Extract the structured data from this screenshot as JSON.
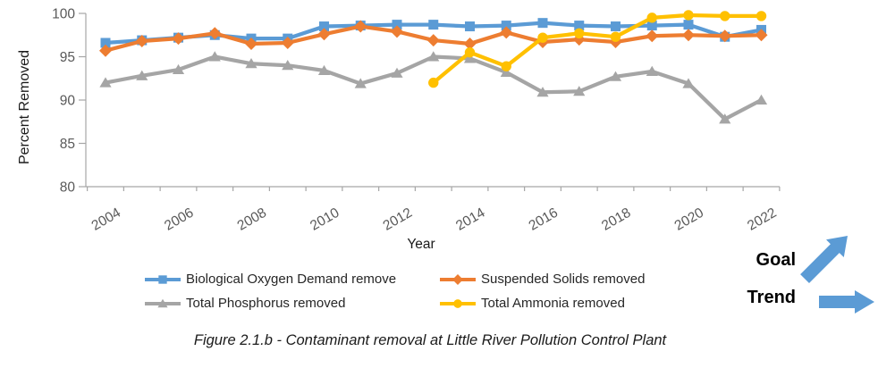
{
  "chart_data": {
    "type": "line",
    "xlabel": "Year",
    "ylabel": "Percent Removed",
    "ylim": [
      80,
      100
    ],
    "yticks": [
      100,
      95,
      90,
      85,
      80
    ],
    "xtick_labeled_years": [
      2004,
      2006,
      2008,
      2010,
      2012,
      2014,
      2016,
      2018,
      2020,
      2022
    ],
    "x": [
      2004,
      2005,
      2006,
      2007,
      2008,
      2009,
      2010,
      2011,
      2012,
      2013,
      2014,
      2015,
      2016,
      2017,
      2018,
      2019,
      2020,
      2021,
      2022
    ],
    "grid": false,
    "legend_position": "bottom",
    "series": [
      {
        "name": "Biological Oxygen Demand remove",
        "color": "#5B9BD5",
        "marker": "square",
        "values": [
          96.6,
          96.9,
          97.2,
          97.5,
          97.1,
          97.1,
          98.5,
          98.6,
          98.7,
          98.7,
          98.5,
          98.6,
          98.9,
          98.6,
          98.5,
          98.6,
          98.7,
          97.3,
          98.1
        ]
      },
      {
        "name": "Suspended Solids removed",
        "color": "#ED7D31",
        "marker": "diamond",
        "values": [
          95.7,
          96.8,
          97.1,
          97.7,
          96.5,
          96.6,
          97.6,
          98.5,
          97.9,
          96.9,
          96.5,
          97.8,
          96.7,
          97.0,
          96.7,
          97.4,
          97.5,
          97.4,
          97.5
        ]
      },
      {
        "name": "Total Phosphorus removed",
        "color": "#A5A5A5",
        "marker": "triangle",
        "values": [
          92.0,
          92.8,
          93.5,
          95.0,
          94.2,
          94.0,
          93.4,
          91.9,
          93.1,
          95.0,
          94.8,
          93.2,
          90.9,
          91.0,
          92.7,
          93.3,
          91.9,
          87.8,
          90.0
        ]
      },
      {
        "name": "Total Ammonia removed",
        "color": "#FFC000",
        "marker": "circle",
        "values": [
          null,
          null,
          null,
          null,
          null,
          null,
          null,
          null,
          null,
          92.0,
          95.5,
          93.9,
          97.2,
          97.7,
          97.3,
          99.5,
          99.8,
          99.7,
          99.7
        ]
      }
    ]
  },
  "annotations": {
    "goal_label": "Goal",
    "trend_label": "Trend",
    "arrow_color": "#5B9BD5"
  },
  "caption": "Figure 2.1.b - Contaminant removal at Little River Pollution Control Plant",
  "style_colors": {
    "axis": "#A6A6A6",
    "tick_text": "#595959",
    "axis_title_text": "#1a1a1a"
  }
}
